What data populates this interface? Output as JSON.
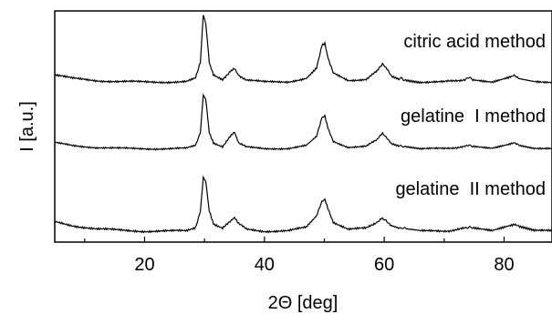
{
  "chart_data": {
    "type": "line",
    "xlabel": "2Θ [deg]",
    "ylabel": "I [a.u.]",
    "xlim": [
      5,
      88
    ],
    "x_ticks": [
      "20",
      "40",
      "60",
      "80"
    ],
    "y_ticks_labeled": false,
    "grid": false,
    "legend": "none",
    "series": [
      {
        "name": "citric acid method",
        "x": [
          5,
          8,
          12,
          16,
          20,
          24,
          27,
          28.5,
          29.3,
          29.8,
          30.2,
          30.8,
          31.5,
          33,
          34.3,
          35,
          35.7,
          37,
          40,
          44,
          47,
          48.7,
          49.6,
          50.1,
          50.6,
          51.5,
          54,
          57,
          58.8,
          59.7,
          60.3,
          61.2,
          62.4,
          63,
          63.6,
          66,
          70,
          73.6,
          74.2,
          74.8,
          78,
          80.7,
          81.7,
          82.6,
          85,
          88
        ],
        "y": [
          5,
          3,
          1.8,
          1.2,
          1,
          1,
          1.2,
          3,
          12,
          39,
          34,
          12,
          5,
          2.5,
          7,
          9,
          5,
          2,
          1,
          1.2,
          3,
          9,
          22,
          23,
          15,
          6,
          2,
          2.5,
          7,
          11,
          9,
          4,
          2.5,
          3,
          2,
          1,
          1,
          2.5,
          3.5,
          2.5,
          1,
          3.5,
          4.5,
          3.2,
          1.5,
          1
        ]
      },
      {
        "name": "gelatine  I method",
        "x": [
          5,
          8,
          12,
          16,
          20,
          24,
          27,
          28.5,
          29.3,
          29.8,
          30.2,
          30.8,
          31.5,
          33,
          34.3,
          35,
          35.7,
          37,
          40,
          44,
          47,
          48.7,
          49.6,
          50.1,
          50.6,
          51.5,
          54,
          57,
          58.8,
          59.7,
          60.3,
          61.2,
          62.4,
          63,
          63.6,
          66,
          70,
          73.6,
          74.2,
          74.8,
          78,
          80.7,
          81.7,
          82.6,
          85,
          88
        ],
        "y": [
          5,
          3,
          1.8,
          1.2,
          1,
          1,
          1.2,
          3,
          12,
          37,
          34,
          12,
          5,
          2.5,
          9,
          12,
          5,
          2,
          1,
          1.2,
          3,
          9,
          22,
          23,
          15,
          6,
          2,
          2.5,
          7,
          11,
          9,
          4,
          2.5,
          3,
          2,
          1,
          1,
          2.5,
          3.5,
          2.5,
          1,
          3.5,
          4.5,
          3.2,
          1.5,
          1
        ]
      },
      {
        "name": "gelatine  II method",
        "x": [
          5,
          8,
          12,
          16,
          20,
          24,
          27,
          28.5,
          29.3,
          29.8,
          30.2,
          30.8,
          31.5,
          33,
          34.3,
          35,
          35.7,
          37,
          40,
          44,
          47,
          48.7,
          49.6,
          50.1,
          50.6,
          51.5,
          54,
          57,
          58.8,
          59.7,
          60.3,
          61.2,
          62.4,
          63,
          63.6,
          66,
          70,
          73.6,
          74.2,
          74.8,
          78,
          80.7,
          81.7,
          82.6,
          85,
          88
        ],
        "y": [
          6,
          4,
          2.2,
          1.5,
          1,
          1,
          1.2,
          3,
          12,
          30,
          28,
          12,
          5,
          2.5,
          6,
          8,
          5,
          2,
          1,
          1.2,
          3,
          9,
          17,
          18,
          13,
          6,
          2,
          2.5,
          6,
          8,
          7,
          4,
          2.5,
          3,
          2,
          1,
          1,
          2.5,
          3.5,
          2.5,
          1,
          3.5,
          4.5,
          3.2,
          1.5,
          1
        ]
      }
    ]
  }
}
